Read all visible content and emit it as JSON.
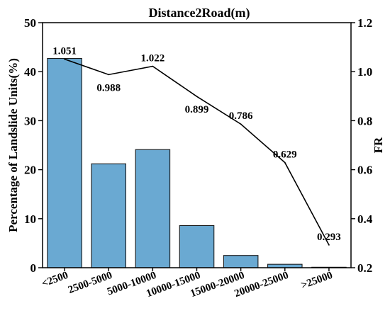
{
  "chart_data": {
    "type": "bar",
    "title": "Distance2Road(m)",
    "xlabel": "",
    "ylabel": "Percentage of Landslide Units(%)",
    "y2label": "FR",
    "categories": [
      "<2500",
      "2500-5000",
      "5000-10000",
      "10000-15000",
      "15000-20000",
      "20000-25000",
      ">25000"
    ],
    "series": [
      {
        "values": [
          42.7,
          21.2,
          24.1,
          8.6,
          2.5,
          0.7,
          0.1
        ],
        "type": "bar",
        "axis": "left"
      },
      {
        "values": [
          1.051,
          0.988,
          1.022,
          0.899,
          0.786,
          0.629,
          0.293
        ],
        "type": "line",
        "axis": "right"
      }
    ],
    "fr_labels": [
      "1.051",
      "0.988",
      "1.022",
      "0.899",
      "0.786",
      "0.629",
      "0.293"
    ],
    "ylim": [
      0,
      50
    ],
    "y2lim": [
      0.2,
      1.2
    ],
    "yticks": [
      "0",
      "10",
      "20",
      "30",
      "40",
      "50"
    ],
    "y2ticks": [
      "0.2",
      "0.4",
      "0.6",
      "0.8",
      "1.0",
      "1.2"
    ],
    "grid": false,
    "bar_color": "#6aa9d2",
    "line_color": "#000000"
  }
}
